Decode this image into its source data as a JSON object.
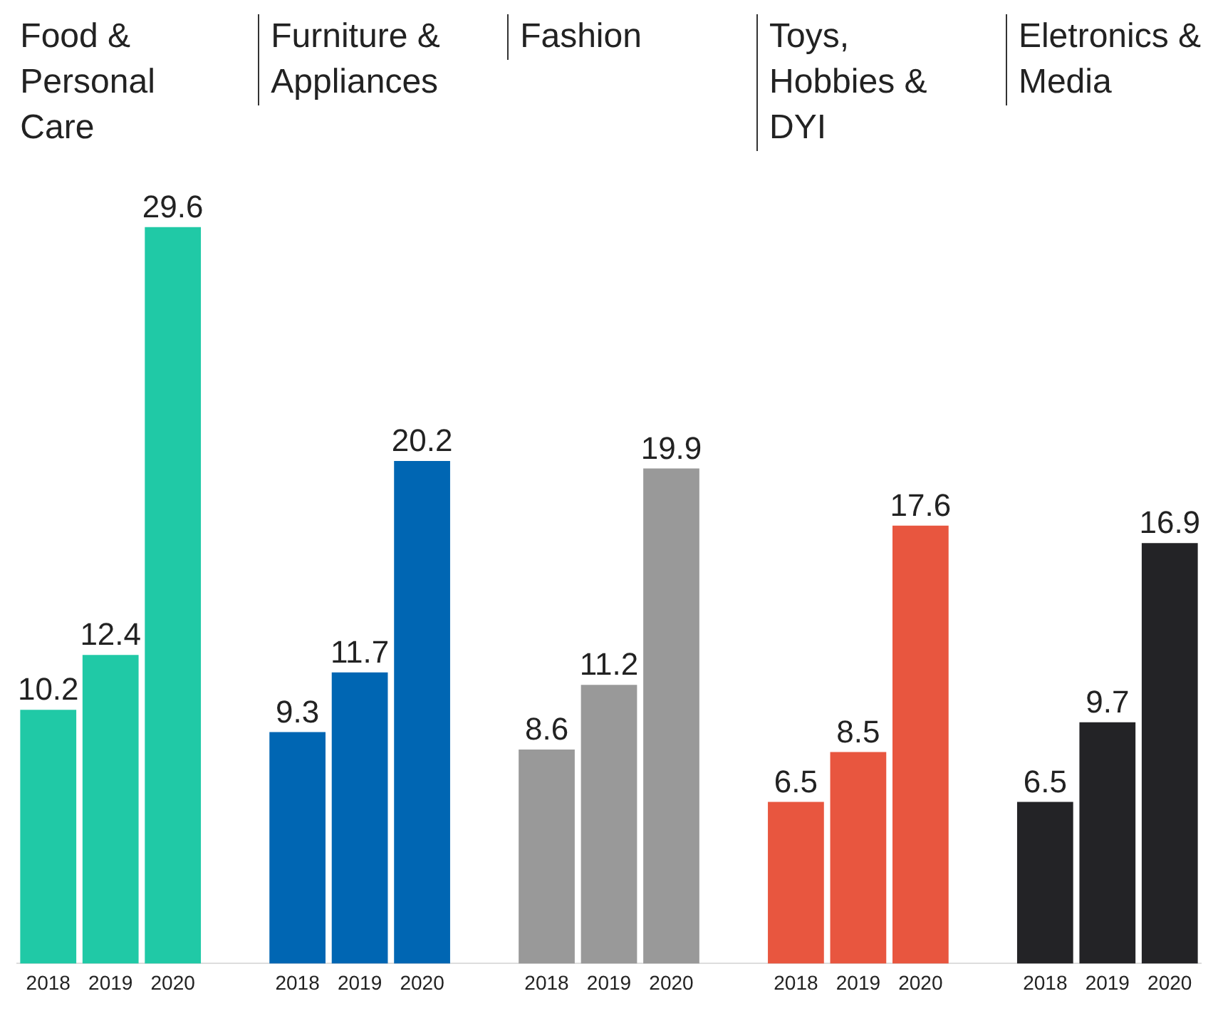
{
  "chart_data": {
    "type": "bar",
    "categories": [
      "2018",
      "2019",
      "2020",
      null,
      "2018",
      "2019",
      "2020",
      null,
      "2018",
      "2019",
      "2020",
      null,
      "2018",
      "2019",
      "2020",
      null,
      "2018",
      "2019",
      "2020"
    ],
    "values": [
      10.2,
      12.4,
      29.6,
      null,
      9.3,
      11.7,
      20.2,
      null,
      8.6,
      11.2,
      19.9,
      null,
      6.5,
      8.5,
      17.6,
      null,
      6.5,
      9.7,
      16.9
    ],
    "colors": [
      "#20c9a6",
      "#20c9a6",
      "#20c9a6",
      null,
      "#0066b3",
      "#0066b3",
      "#0066b3",
      null,
      "#999999",
      "#999999",
      "#999999",
      null,
      "#e8563f",
      "#e8563f",
      "#e8563f",
      null,
      "#232326",
      "#232326",
      "#232326"
    ],
    "data_labels": true,
    "annotations": [
      "Food & Personal Care",
      "Furniture & Appliances",
      "Fashion",
      "Toys, Hobbies & DYI",
      "Eletronics & Media"
    ]
  }
}
